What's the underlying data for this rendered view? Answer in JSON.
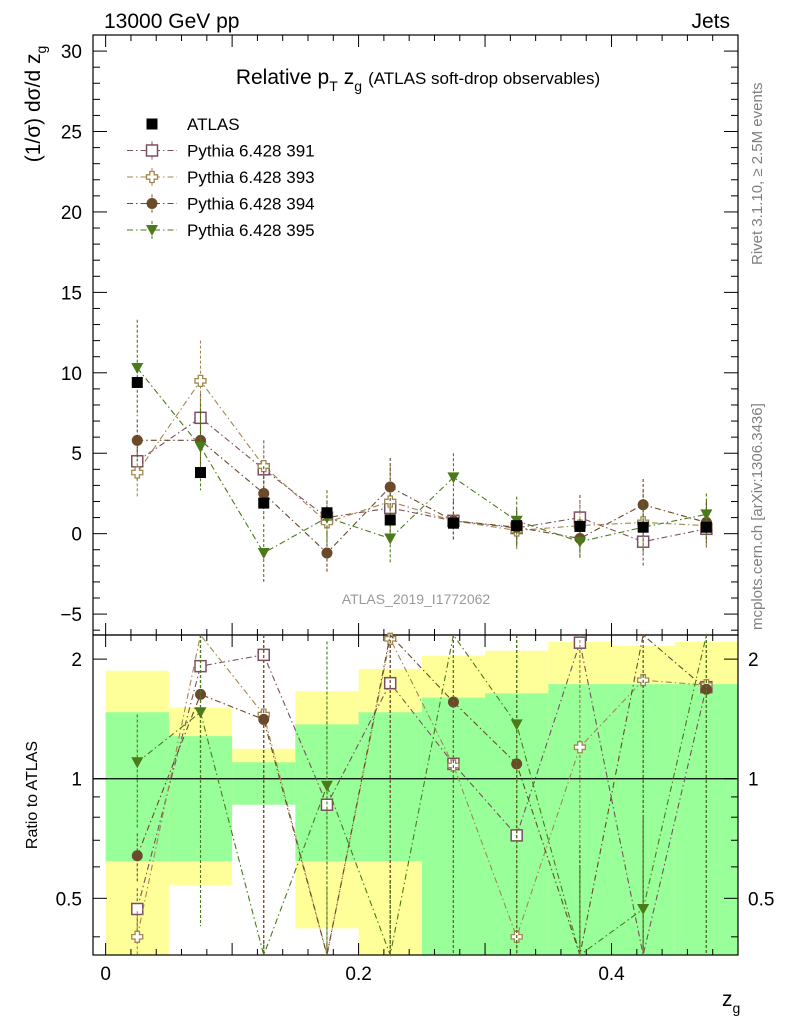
{
  "header": {
    "left": "13000 GeV pp",
    "right": "Jets"
  },
  "side_text": {
    "top": "Rivet 3.1.10, ≥ 2.5M events",
    "bottom": "mcplots.cern.ch [arXiv:1306.3436]"
  },
  "analysis_tag": "ATLAS_2019_I1772062",
  "chart_data": {
    "type": "scatter",
    "title": "Relative p_T z_g (ATLAS soft-drop observables)",
    "title_parts": {
      "main": "Relative p",
      "sub_T": "T",
      "zg": "z",
      "sub_g": "g",
      "tail": "(ATLAS soft-drop observables)"
    },
    "xlabel": "z_g",
    "xlabel_parts": {
      "main": "z",
      "sub": "g"
    },
    "ylabel": "(1/σ) dσ/d z_g",
    "ylabel_parts": {
      "main": "(1/σ) dσ/d z",
      "sub": "g"
    },
    "ratio_ylabel": "Ratio to ATLAS",
    "xlim": [
      -0.01,
      0.5
    ],
    "ylim": [
      -6.3,
      31
    ],
    "ratio_ylim": [
      0.36,
      2.3
    ],
    "x_ticks": [
      0,
      0.2,
      0.4
    ],
    "x_tick_labels": [
      "0",
      "0.2",
      "0.4"
    ],
    "y_ticks": [
      -5,
      0,
      5,
      10,
      15,
      20,
      25,
      30
    ],
    "y_tick_labels": [
      "−5",
      "0",
      "5",
      "10",
      "15",
      "20",
      "25",
      "30"
    ],
    "ratio_ticks": [
      0.5,
      1,
      2
    ],
    "ratio_tick_labels": [
      "0.5",
      "1",
      "2"
    ],
    "legend_position": "top-left",
    "x": [
      0.025,
      0.075,
      0.125,
      0.175,
      0.225,
      0.275,
      0.325,
      0.375,
      0.425,
      0.475
    ],
    "bin_edges": [
      0,
      0.05,
      0.1,
      0.15,
      0.2,
      0.25,
      0.3,
      0.35,
      0.4,
      0.45,
      0.5
    ],
    "data": {
      "name": "ATLAS",
      "values": [
        9.4,
        3.8,
        1.9,
        1.3,
        0.85,
        0.65,
        0.5,
        0.45,
        0.4,
        0.4
      ],
      "errors": [
        0.3,
        0.3,
        0.2,
        0.2,
        0.2,
        0.2,
        0.2,
        0.2,
        0.2,
        0.2
      ],
      "ratio_band_inner": [
        [
          0.62,
          1.47
        ],
        [
          0.62,
          1.28
        ],
        [
          0.62,
          1.1
        ],
        [
          0.62,
          1.37
        ],
        [
          0.62,
          1.47
        ],
        [
          0.36,
          1.6
        ],
        [
          0.36,
          1.64
        ],
        [
          0.36,
          1.73
        ],
        [
          0.36,
          1.73
        ],
        [
          0.36,
          1.73
        ]
      ],
      "ratio_band_outer": [
        [
          0.36,
          1.87
        ],
        [
          0.36,
          1.51
        ],
        [
          0.36,
          1.19
        ],
        [
          0.36,
          1.66
        ],
        [
          0.36,
          1.89
        ],
        [
          0.36,
          2.04
        ],
        [
          0.36,
          2.1
        ],
        [
          0.36,
          2.21
        ],
        [
          0.36,
          2.16
        ],
        [
          0.36,
          2.21
        ]
      ],
      "ratio_band_white": [
        [
          null,
          null
        ],
        [
          0.36,
          0.54
        ],
        [
          0.36,
          0.86
        ],
        [
          0.36,
          0.42
        ],
        [
          null,
          null
        ],
        [
          null,
          null
        ],
        [
          null,
          null
        ],
        [
          null,
          null
        ],
        [
          null,
          null
        ],
        [
          null,
          null
        ]
      ],
      "color": "#000000"
    },
    "series": [
      {
        "name": "Pythia 6.428 391",
        "marker": "open-square",
        "color": "#7a5060",
        "values": [
          4.5,
          7.2,
          4.0,
          1.0,
          1.6,
          0.8,
          0.35,
          1.0,
          -0.5,
          0.3
        ],
        "errors": [
          1.2,
          1.5,
          1.8,
          1.0,
          1.5,
          1.2,
          1.2,
          1.4,
          1.5,
          1.2
        ],
        "ratio": [
          0.47,
          1.92,
          2.05,
          0.86,
          1.74,
          1.09,
          0.72,
          2.2,
          0.2,
          1.7
        ]
      },
      {
        "name": "Pythia 6.428 393",
        "marker": "open-cross",
        "color": "#a08850",
        "values": [
          3.8,
          9.5,
          4.2,
          0.7,
          2.0,
          0.8,
          0.2,
          0.5,
          0.7,
          0.5
        ],
        "errors": [
          1.5,
          2.5,
          1.6,
          1.0,
          2.2,
          1.2,
          1.2,
          1.5,
          2.0,
          1.4
        ],
        "ratio": [
          0.4,
          2.4,
          1.45,
          0.3,
          2.25,
          1.08,
          0.4,
          1.2,
          1.77,
          1.72
        ]
      },
      {
        "name": "Pythia 6.428 394",
        "marker": "filled-circle",
        "color": "#6a4a2a",
        "values": [
          5.8,
          5.8,
          2.5,
          -1.2,
          2.9,
          0.8,
          0.4,
          -0.3,
          1.8,
          0.7
        ],
        "errors": [
          1.3,
          1.8,
          1.7,
          1.2,
          1.8,
          1.2,
          1.0,
          1.2,
          1.6,
          1.3
        ],
        "ratio": [
          0.64,
          1.63,
          1.41,
          0.2,
          3.0,
          1.56,
          1.09,
          0.2,
          3.0,
          1.68
        ]
      },
      {
        "name": "Pythia 6.428 395",
        "marker": "filled-triangle",
        "color": "#4a7a1a",
        "values": [
          10.3,
          5.4,
          -1.2,
          1.0,
          -0.3,
          3.5,
          0.8,
          -0.5,
          0.4,
          1.2
        ],
        "errors": [
          3.0,
          2.7,
          1.8,
          1.7,
          1.5,
          1.5,
          1.5,
          1.0,
          1.5,
          1.3
        ],
        "ratio": [
          1.1,
          1.47,
          0.2,
          0.96,
          0.2,
          3.0,
          1.37,
          0.2,
          0.47,
          2.4
        ]
      }
    ]
  }
}
